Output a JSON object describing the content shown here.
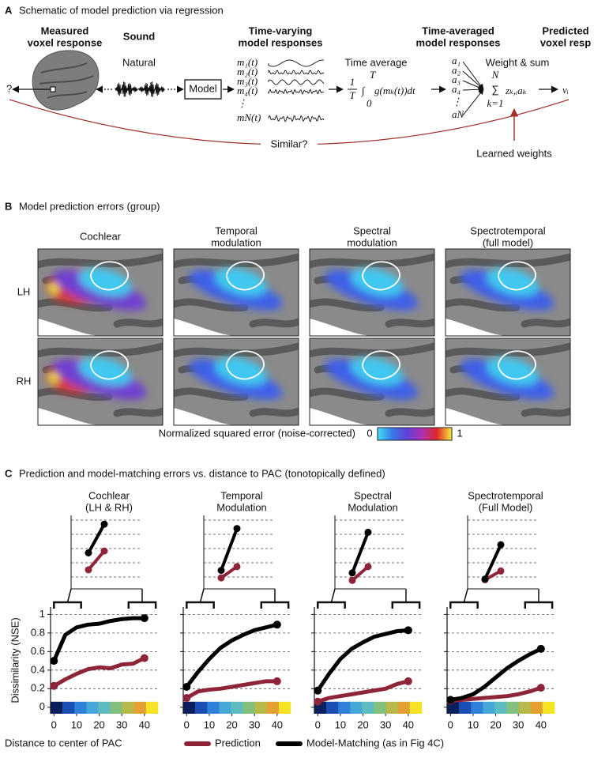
{
  "panel_a": {
    "letter": "A",
    "title": "Schematic of model prediction via regression",
    "headers": [
      [
        "Measured",
        "voxel response"
      ],
      [
        "Sound"
      ],
      [
        "Time-varying",
        "model responses"
      ],
      [
        "Time-averaged",
        "model responses"
      ],
      [
        "Predicted",
        "voxel resp"
      ]
    ],
    "sound_label": "Natural",
    "unknown": "?",
    "model": "Model",
    "responses": [
      "m₁(t)",
      "m₂(t)",
      "m₃(t)",
      "m₄(t)",
      "⋮",
      "mN(t)"
    ],
    "time_average": "Time average",
    "formula": {
      "numerator": "1",
      "denominator": "T",
      "integral": "∫",
      "upper": "T",
      "lower": "0",
      "integrand": "g(mₖ(t))dt"
    },
    "features": [
      "a₁",
      "a₂",
      "a₃",
      "a₄",
      "⋮",
      "aN"
    ],
    "weight_sum": "Weight & sum",
    "sum": {
      "symbol": "∑",
      "upper": "N",
      "lower": "k=1",
      "term": "zₖ,ᵢaₖ"
    },
    "output": "vᵢ",
    "similar": "Similar?",
    "learned": "Learned weights"
  },
  "panel_b": {
    "letter": "B",
    "title": "Model prediction errors (group)",
    "columns": [
      [
        "Cochlear"
      ],
      [
        "Temporal",
        "modulation"
      ],
      [
        "Spectral",
        "modulation"
      ],
      [
        "Spectrotemporal",
        "(full model)"
      ]
    ],
    "rows": [
      "LH",
      "RH"
    ],
    "colorbar": {
      "label": "Normalized squared error (noise-corrected)",
      "min": 0,
      "max": 1,
      "colors": [
        "#40e0f8",
        "#3878e8",
        "#6040d8",
        "#b030b0",
        "#e02828",
        "#f8f040"
      ]
    }
  },
  "panel_c": {
    "letter": "C",
    "title": "Prediction and model-matching errors vs. distance to PAC (tonotopically defined)"
  },
  "chart_data": [
    {
      "type": "line",
      "title": [
        "Cochlear",
        "(LH & RH)"
      ],
      "x": [
        0,
        5,
        10,
        15,
        20,
        25,
        30,
        35,
        40
      ],
      "series": [
        {
          "name": "Prediction",
          "color": "#8e2438",
          "values": [
            0.23,
            0.3,
            0.36,
            0.41,
            0.43,
            0.42,
            0.46,
            0.47,
            0.53
          ]
        },
        {
          "name": "Model-Matching (as in Fig 4C)",
          "color": "#000000",
          "values": [
            0.5,
            0.78,
            0.86,
            0.89,
            0.9,
            0.93,
            0.95,
            0.96,
            0.96
          ]
        }
      ],
      "xlim": [
        -1.5,
        46
      ],
      "xticks": [
        0,
        10,
        20,
        30,
        40
      ],
      "ylim": [
        -0.07,
        1.08
      ],
      "yticks": [
        0,
        0.2,
        0.4,
        0.6,
        0.8,
        1
      ],
      "grid": true,
      "ylabel": "Dissimilarity (NSE)",
      "xlabel": "Distance to center of PAC",
      "legend": "bottom",
      "x_colorbar": [
        "#0b1f5e",
        "#1c4fb5",
        "#2f80d8",
        "#45a8d8",
        "#5cbcc0",
        "#82c07c",
        "#b9b84a",
        "#e4a030",
        "#f6e424"
      ]
    },
    {
      "type": "line",
      "title": [
        "Temporal",
        "Modulation"
      ],
      "x": [
        0,
        5,
        10,
        15,
        20,
        25,
        30,
        35,
        40
      ],
      "series": [
        {
          "color": "#8e2438",
          "values": [
            0.1,
            0.17,
            0.19,
            0.2,
            0.22,
            0.24,
            0.26,
            0.28,
            0.28
          ]
        },
        {
          "color": "#000000",
          "values": [
            0.22,
            0.38,
            0.52,
            0.64,
            0.72,
            0.78,
            0.83,
            0.86,
            0.89
          ]
        }
      ],
      "xlim": [
        -1.5,
        46
      ],
      "xticks": [
        0,
        10,
        20,
        30,
        40
      ],
      "ylim": [
        -0.07,
        1.08
      ],
      "yticks": [
        0,
        0.2,
        0.4,
        0.6,
        0.8,
        1
      ],
      "grid": true,
      "ytick_labels": false,
      "x_colorbar": [
        "#0b1f5e",
        "#1c4fb5",
        "#2f80d8",
        "#45a8d8",
        "#5cbcc0",
        "#82c07c",
        "#b9b84a",
        "#e4a030",
        "#f6e424"
      ]
    },
    {
      "type": "line",
      "title": [
        "Spectral",
        "Modulation"
      ],
      "x": [
        0,
        5,
        10,
        15,
        20,
        25,
        30,
        35,
        40
      ],
      "series": [
        {
          "color": "#8e2438",
          "values": [
            0.06,
            0.1,
            0.12,
            0.14,
            0.16,
            0.18,
            0.2,
            0.25,
            0.28
          ]
        },
        {
          "color": "#000000",
          "values": [
            0.18,
            0.36,
            0.52,
            0.63,
            0.7,
            0.76,
            0.79,
            0.82,
            0.83
          ]
        }
      ],
      "xlim": [
        -1.5,
        46
      ],
      "xticks": [
        0,
        10,
        20,
        30,
        40
      ],
      "ylim": [
        -0.07,
        1.08
      ],
      "yticks": [
        0,
        0.2,
        0.4,
        0.6,
        0.8,
        1
      ],
      "grid": true,
      "ytick_labels": false,
      "x_colorbar": [
        "#0b1f5e",
        "#1c4fb5",
        "#2f80d8",
        "#45a8d8",
        "#5cbcc0",
        "#82c07c",
        "#b9b84a",
        "#e4a030",
        "#f6e424"
      ]
    },
    {
      "type": "line",
      "title": [
        "Spectrotemporal",
        "(Full Model)"
      ],
      "x": [
        0,
        5,
        10,
        15,
        20,
        25,
        30,
        35,
        40
      ],
      "series": [
        {
          "color": "#8e2438",
          "values": [
            0.07,
            0.08,
            0.09,
            0.1,
            0.11,
            0.12,
            0.14,
            0.17,
            0.21
          ]
        },
        {
          "color": "#000000",
          "values": [
            0.08,
            0.1,
            0.14,
            0.22,
            0.32,
            0.42,
            0.5,
            0.57,
            0.63
          ]
        }
      ],
      "xlim": [
        -1.5,
        46
      ],
      "xticks": [
        0,
        10,
        20,
        30,
        40
      ],
      "ylim": [
        -0.07,
        1.08
      ],
      "yticks": [
        0,
        0.2,
        0.4,
        0.6,
        0.8,
        1
      ],
      "grid": true,
      "ytick_labels": false,
      "x_colorbar": [
        "#0b1f5e",
        "#1c4fb5",
        "#2f80d8",
        "#45a8d8",
        "#5cbcc0",
        "#82c07c",
        "#b9b84a",
        "#e4a030",
        "#f6e424"
      ]
    }
  ]
}
